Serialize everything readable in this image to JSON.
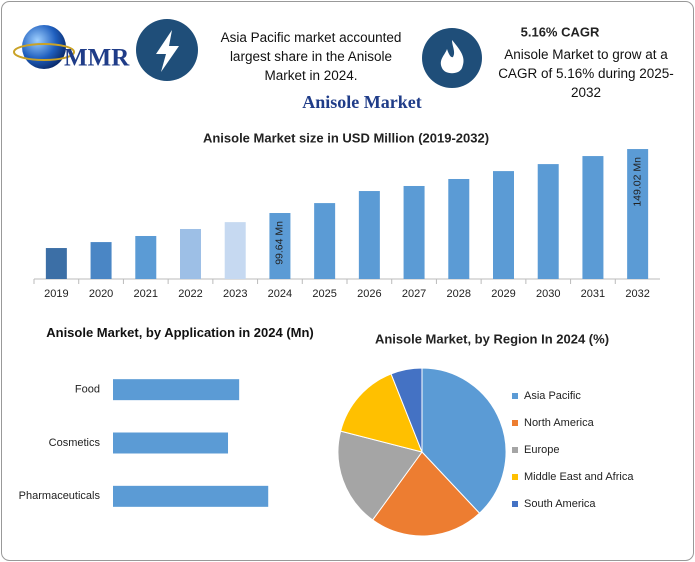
{
  "header": {
    "logo": "MMR",
    "highlight": "Asia Pacific market accounted largest share in the Anisole Market in 2024.",
    "cagr_title": "5.16% CAGR",
    "cagr_text": "Anisole Market to grow at a CAGR of 5.16% during 2025-2032",
    "title": "Anisole Market"
  },
  "chart_data": [
    {
      "type": "bar",
      "title": "Anisole Market size in USD Million (2019-2032)",
      "categories": [
        "2019",
        "2020",
        "2021",
        "2022",
        "2023",
        "2024",
        "2025",
        "2026",
        "2027",
        "2028",
        "2029",
        "2030",
        "2031",
        "2032"
      ],
      "values": [
        72.6,
        77.2,
        81.9,
        87.3,
        92.6,
        99.64,
        107.3,
        116.6,
        120.5,
        125.9,
        132.0,
        137.4,
        143.6,
        149.02
      ],
      "value_labels": [
        null,
        null,
        null,
        null,
        null,
        "99.64 Mn",
        null,
        null,
        null,
        null,
        null,
        null,
        null,
        "149.02 Mn"
      ],
      "colors": [
        "#3c6fa6",
        "#4a86c5",
        "#5b9bd5",
        "#9dbfe6",
        "#c6d9f1",
        "#5b9bd5",
        "#5b9bd5",
        "#5b9bd5",
        "#5b9bd5",
        "#5b9bd5",
        "#5b9bd5",
        "#5b9bd5",
        "#5b9bd5",
        "#5b9bd5"
      ],
      "ylim": [
        48.7,
        156
      ]
    },
    {
      "type": "bar",
      "orientation": "horizontal",
      "title": "Anisole Market, by Application in 2024 (Mn)",
      "categories": [
        "Food",
        "Cosmetics",
        "Pharmaceuticals"
      ],
      "values": [
        31.7,
        28.9,
        39.0
      ],
      "color": "#5b9bd5",
      "xlim": [
        0,
        50
      ]
    },
    {
      "type": "pie",
      "title": "Anisole Market, by Region In 2024 (%)",
      "categories": [
        "Asia Pacific",
        "North America",
        "Europe",
        "Middle East and Africa",
        "South America"
      ],
      "values": [
        38,
        22,
        19,
        15,
        6
      ],
      "colors": [
        "#5b9bd5",
        "#ed7d31",
        "#a5a5a5",
        "#ffc000",
        "#4472c4"
      ]
    }
  ]
}
